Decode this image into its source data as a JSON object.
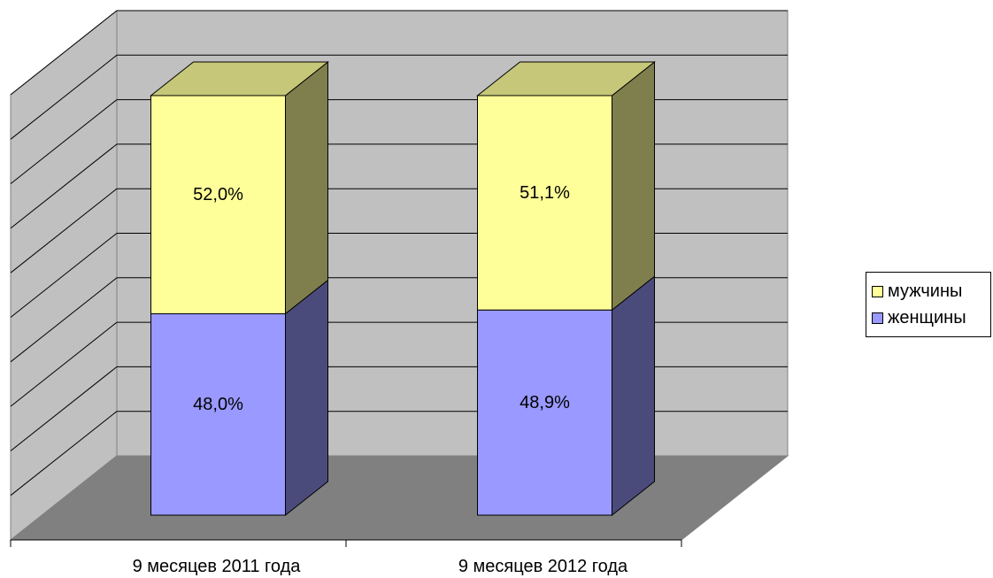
{
  "chart_data": {
    "type": "bar",
    "stacked": true,
    "three_d": true,
    "categories": [
      "9 месяцев 2011 года",
      "9 месяцев 2012 года"
    ],
    "series": [
      {
        "name": "женщины",
        "values": [
          48.0,
          48.9
        ],
        "labels": [
          "48,0%",
          "48,9%"
        ],
        "color": "#9999ff",
        "side_color": "#4b4b7b"
      },
      {
        "name": "мужчины",
        "values": [
          52.0,
          51.1
        ],
        "labels": [
          "52,0%",
          "51,1%"
        ],
        "color": "#ffff99",
        "top_color": "#c7c77a",
        "side_color": "#7f7f4d"
      }
    ],
    "ylim": [
      0,
      100
    ],
    "grid": true,
    "legend_position": "right",
    "colors": {
      "back_wall": "#c0c0c0",
      "floor": "#808080",
      "grid": "#000000"
    }
  }
}
